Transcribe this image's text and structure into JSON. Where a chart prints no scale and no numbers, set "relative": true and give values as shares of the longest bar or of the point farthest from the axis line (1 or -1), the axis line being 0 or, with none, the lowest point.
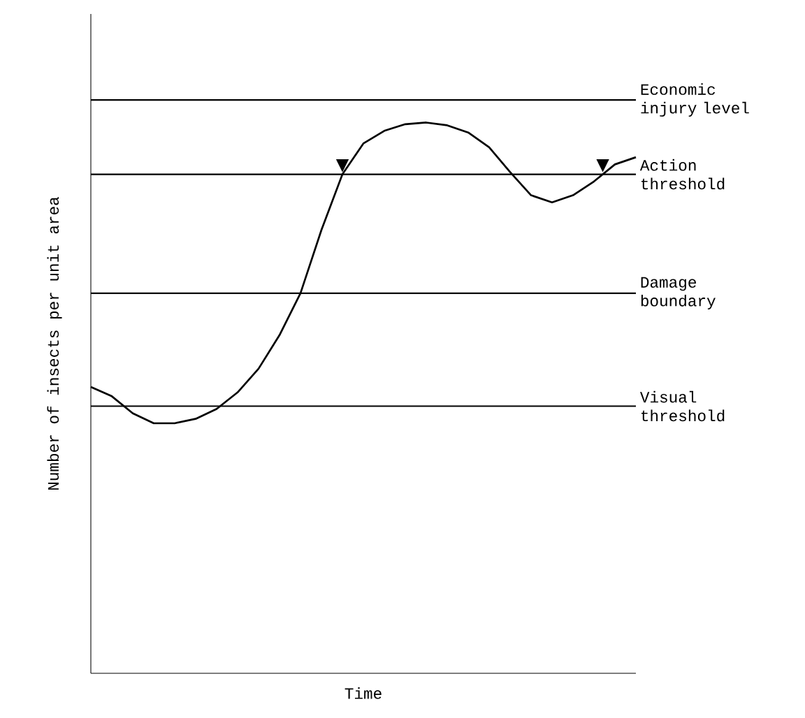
{
  "chart_data": {
    "type": "line",
    "xlabel": "Time",
    "ylabel": "Number of insects per unit area",
    "relative": true,
    "line_style": "solid",
    "categories": [
      null,
      null,
      null,
      null,
      null,
      null,
      null,
      null,
      null,
      null,
      null,
      null,
      null,
      null,
      null,
      null,
      null,
      null,
      null,
      null,
      null,
      null,
      null,
      null,
      null,
      null,
      null
    ],
    "series": [
      {
        "color": "#000000",
        "values": [
          0.52,
          0.503,
          0.472,
          0.454,
          0.454,
          0.462,
          0.48,
          0.51,
          0.553,
          0.614,
          0.69,
          0.805,
          0.906,
          0.962,
          0.985,
          0.997,
          1.0,
          0.995,
          0.982,
          0.955,
          0.91,
          0.868,
          0.855,
          0.868,
          0.893,
          0.924,
          0.937
        ]
      }
    ],
    "annotations": [
      {
        "text": "▼",
        "y": 0.906
      },
      {
        "text": "▼",
        "y": 0.906
      }
    ],
    "ref_lines": [
      {
        "axis": "y",
        "value": 1.041,
        "label": "Economic injury level"
      },
      {
        "axis": "y",
        "value": 0.906,
        "label": "Action threshold"
      },
      {
        "axis": "y",
        "value": 0.69,
        "label": "Damage boundary"
      },
      {
        "axis": "y",
        "value": 0.485,
        "label": "Visual threshold"
      }
    ]
  }
}
